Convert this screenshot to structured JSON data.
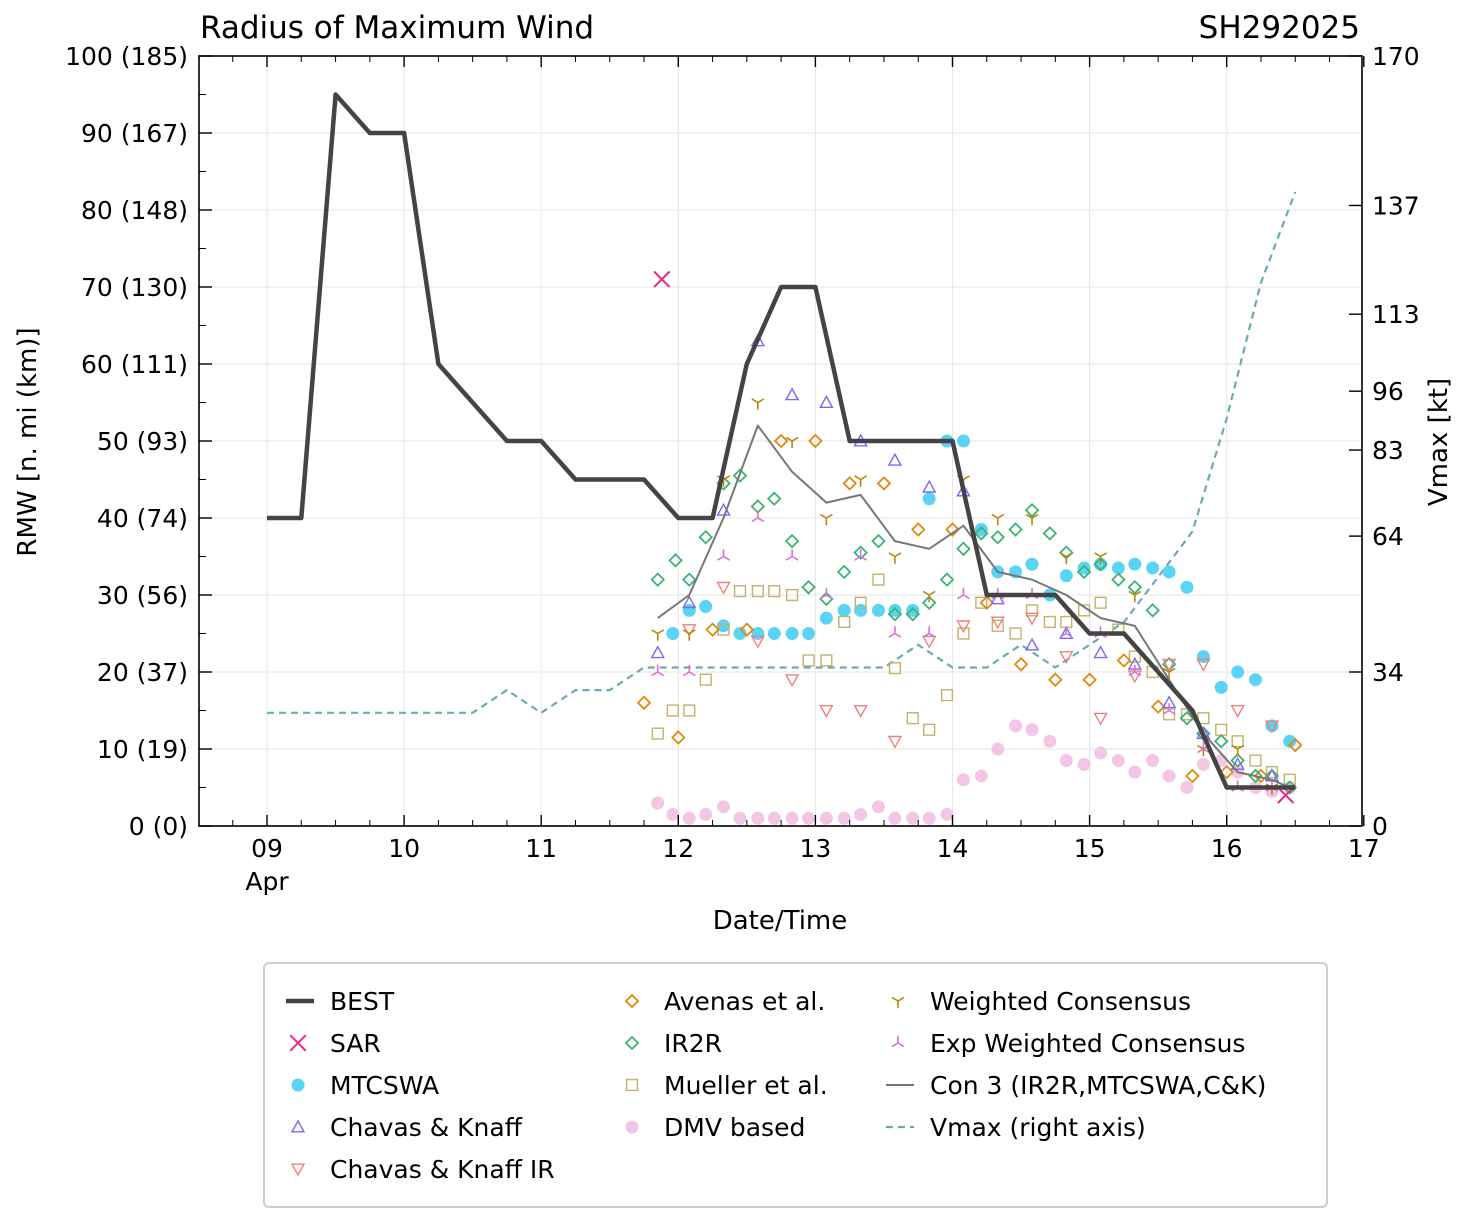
{
  "chart_data": {
    "type": "line",
    "title": "Radius of Maximum Wind",
    "storm_id": "SH292025",
    "xlabel": "Date/Time",
    "ylabel": "RMW [n. mi (km)]",
    "ylabel_right": "Vmax [kt]",
    "xlim": [
      8.5,
      17.0
    ],
    "ylim": [
      0,
      100
    ],
    "ylim_right_kt": [
      0,
      170
    ],
    "x_ticks": [
      {
        "value": 9,
        "label": "09",
        "sublabel": "Apr"
      },
      {
        "value": 10,
        "label": "10"
      },
      {
        "value": 11,
        "label": "11"
      },
      {
        "value": 12,
        "label": "12"
      },
      {
        "value": 13,
        "label": "13"
      },
      {
        "value": 14,
        "label": "14"
      },
      {
        "value": 15,
        "label": "15"
      },
      {
        "value": 16,
        "label": "16"
      },
      {
        "value": 17,
        "label": "17"
      }
    ],
    "y_ticks": [
      {
        "value": 0,
        "label": "0 (0)"
      },
      {
        "value": 10,
        "label": "10 (19)"
      },
      {
        "value": 20,
        "label": "20 (37)"
      },
      {
        "value": 30,
        "label": "30 (56)"
      },
      {
        "value": 40,
        "label": "40 (74)"
      },
      {
        "value": 50,
        "label": "50 (93)"
      },
      {
        "value": 60,
        "label": "60 (111)"
      },
      {
        "value": 70,
        "label": "70 (130)"
      },
      {
        "value": 80,
        "label": "80 (148)"
      },
      {
        "value": 90,
        "label": "90 (167)"
      },
      {
        "value": 100,
        "label": "100 (185)"
      }
    ],
    "y_ticks_right": [
      {
        "kt": 0,
        "label": "0"
      },
      {
        "kt": 34,
        "label": "34"
      },
      {
        "kt": 64,
        "label": "64"
      },
      {
        "kt": 83,
        "label": "83"
      },
      {
        "kt": 96,
        "label": "96"
      },
      {
        "kt": 113,
        "label": "113"
      },
      {
        "kt": 137,
        "label": "137"
      },
      {
        "kt": 170,
        "label": "170"
      }
    ],
    "series": [
      {
        "name": "BEST",
        "label": "BEST",
        "style": "line",
        "color": "#444444",
        "x": [
          9.0,
          9.25,
          9.5,
          9.75,
          10.0,
          10.25,
          10.5,
          10.75,
          11.0,
          11.25,
          11.5,
          11.75,
          12.0,
          12.25,
          12.5,
          12.75,
          13.0,
          13.25,
          13.5,
          13.75,
          14.0,
          14.25,
          14.5,
          14.75,
          15.0,
          15.25,
          15.5,
          15.75,
          16.0,
          16.25,
          16.5
        ],
        "y": [
          40,
          40,
          95,
          90,
          90,
          60,
          55,
          50,
          50,
          45,
          45,
          45,
          40,
          40,
          60,
          70,
          70,
          50,
          50,
          50,
          50,
          30,
          30,
          30,
          25,
          25,
          20,
          15,
          5,
          5,
          5
        ]
      },
      {
        "name": "SAR",
        "label": "SAR",
        "style": "x",
        "color": "#e7298a",
        "x": [
          11.88,
          16.43
        ],
        "y": [
          71,
          4
        ]
      },
      {
        "name": "MTCSWA",
        "label": "MTCSWA",
        "style": "dot",
        "color": "#5bd3f5",
        "x": [
          11.96,
          12.08,
          12.2,
          12.33,
          12.45,
          12.58,
          12.7,
          12.83,
          12.95,
          13.08,
          13.21,
          13.33,
          13.46,
          13.58,
          13.71,
          13.83,
          13.96,
          14.08,
          14.21,
          14.33,
          14.46,
          14.58,
          14.71,
          14.83,
          14.96,
          15.08,
          15.21,
          15.33,
          15.46,
          15.58,
          15.71,
          15.83,
          15.96,
          16.08,
          16.21,
          16.33,
          16.46
        ],
        "y": [
          25,
          28,
          28.5,
          26,
          25,
          25,
          25,
          25,
          25,
          27,
          28,
          28,
          28,
          28,
          28,
          42.5,
          50,
          50,
          38.5,
          33,
          33,
          34,
          30,
          32.5,
          33.5,
          34,
          33.5,
          34,
          33.5,
          33,
          31,
          22,
          18,
          20,
          19,
          13,
          11
        ]
      },
      {
        "name": "Chavas & Knaff",
        "label": "Chavas & Knaff",
        "style": "tri-up",
        "color": "#7b68ee",
        "x": [
          11.85,
          12.08,
          12.33,
          12.58,
          12.83,
          13.08,
          13.33,
          13.58,
          13.83,
          14.08,
          14.33,
          14.58,
          14.83,
          15.08,
          15.33,
          15.58,
          15.83,
          16.08,
          16.33
        ],
        "y": [
          22.5,
          29,
          41,
          63,
          56,
          55,
          50,
          47.5,
          44,
          43.5,
          29.5,
          23.5,
          25,
          22.5,
          21,
          16,
          12,
          8,
          6.5
        ]
      },
      {
        "name": "Chavas & Knaff IR",
        "label": "Chavas & Knaff IR",
        "style": "tri-down",
        "color": "#f08080",
        "x": [
          12.08,
          12.33,
          12.58,
          12.83,
          13.08,
          13.33,
          13.58,
          13.83,
          14.08,
          14.33,
          14.58,
          14.83,
          15.08,
          15.33,
          15.58,
          15.83,
          16.08,
          16.33
        ],
        "y": [
          25.5,
          31,
          24,
          19,
          15,
          15,
          11,
          24,
          26,
          26.5,
          27,
          22,
          14,
          19.5,
          21,
          21,
          15,
          13
        ]
      },
      {
        "name": "Avenas et al.",
        "label": "Avenas et al.",
        "style": "diamond",
        "color": "#e08a0b",
        "x": [
          11.75,
          12.0,
          12.25,
          12.5,
          12.75,
          13.0,
          13.25,
          13.5,
          13.75,
          14.0,
          14.25,
          14.5,
          14.75,
          15.0,
          15.25,
          15.5,
          15.75,
          16.0,
          16.25,
          16.5
        ],
        "y": [
          16,
          11.5,
          25.5,
          25.5,
          50,
          50,
          44.5,
          44.5,
          38.5,
          38.5,
          29,
          21,
          19,
          19,
          21.5,
          15.5,
          6.5,
          7,
          6.5,
          10.5
        ]
      },
      {
        "name": "IR2R",
        "label": "IR2R",
        "style": "diamond",
        "color": "#3cb371",
        "x": [
          11.85,
          11.98,
          12.08,
          12.2,
          12.33,
          12.45,
          12.58,
          12.7,
          12.83,
          12.95,
          13.08,
          13.21,
          13.33,
          13.46,
          13.58,
          13.71,
          13.83,
          13.96,
          14.08,
          14.21,
          14.33,
          14.46,
          14.58,
          14.71,
          14.83,
          14.96,
          15.08,
          15.21,
          15.33,
          15.46,
          15.58,
          15.71,
          15.83,
          15.96,
          16.08,
          16.21,
          16.33,
          16.46
        ],
        "y": [
          32,
          34.5,
          32,
          37.5,
          44.5,
          45.5,
          41.5,
          42.5,
          37,
          31,
          29.5,
          33,
          35.5,
          37,
          27.5,
          27.5,
          29,
          32,
          36,
          38,
          37.5,
          38.5,
          41,
          38,
          35.5,
          33,
          34,
          32,
          31,
          28,
          21,
          14,
          12,
          11,
          8.5,
          6.5,
          6.5,
          5
        ]
      },
      {
        "name": "Mueller et al.",
        "label": "Mueller et al.",
        "style": "square",
        "color": "#c2b26a",
        "x": [
          11.85,
          11.96,
          12.08,
          12.2,
          12.33,
          12.45,
          12.58,
          12.7,
          12.83,
          12.95,
          13.08,
          13.21,
          13.33,
          13.46,
          13.58,
          13.71,
          13.83,
          13.96,
          14.08,
          14.21,
          14.33,
          14.46,
          14.58,
          14.71,
          14.83,
          14.96,
          15.08,
          15.21,
          15.33,
          15.46,
          15.58,
          15.71,
          15.83,
          15.96,
          16.08,
          16.21,
          16.33,
          16.46
        ],
        "y": [
          12,
          15,
          15,
          19,
          25.5,
          30.5,
          30.5,
          30.5,
          30,
          21.5,
          21.5,
          26.5,
          29,
          32,
          20.5,
          14,
          12.5,
          17,
          25,
          29,
          26,
          25,
          28,
          26.5,
          26.5,
          28,
          29,
          25.5,
          22,
          20,
          14.5,
          14.5,
          14,
          12.5,
          11,
          8.5,
          7,
          6
        ]
      },
      {
        "name": "DMV based",
        "label": "DMV based",
        "style": "dot",
        "color": "#f2c6e4",
        "x": [
          11.85,
          11.96,
          12.08,
          12.2,
          12.33,
          12.45,
          12.58,
          12.7,
          12.83,
          12.95,
          13.08,
          13.21,
          13.33,
          13.46,
          13.58,
          13.71,
          13.83,
          13.96,
          14.08,
          14.21,
          14.33,
          14.46,
          14.58,
          14.71,
          14.83,
          14.96,
          15.08,
          15.21,
          15.33,
          15.46,
          15.58,
          15.71,
          15.83,
          15.96,
          16.08,
          16.21,
          16.33,
          16.46
        ],
        "y": [
          3,
          1.5,
          1,
          1.5,
          2.5,
          1,
          1,
          1,
          1,
          1,
          1,
          1,
          1.5,
          2.5,
          1,
          1,
          1,
          1.5,
          6,
          6.5,
          10,
          13,
          12.5,
          11,
          8.5,
          8,
          9.5,
          8.5,
          7,
          8.5,
          6.5,
          5,
          8,
          8.5,
          7,
          5,
          4.5,
          5
        ]
      },
      {
        "name": "Weighted Consensus",
        "label": "Weighted Consensus",
        "style": "tri-y",
        "color": "#b8860b",
        "x": [
          11.85,
          12.08,
          12.33,
          12.58,
          12.83,
          13.08,
          13.33,
          13.58,
          13.83,
          14.08,
          14.33,
          14.58,
          14.83,
          15.08,
          15.33,
          15.58,
          15.83,
          16.08,
          16.33
        ],
        "y": [
          25,
          25,
          45,
          55,
          50,
          40,
          45,
          35,
          30,
          45,
          40,
          40,
          35,
          35,
          30,
          20,
          10,
          10,
          5
        ]
      },
      {
        "name": "Exp Weighted Consensus",
        "label": "Exp Weighted Consensus",
        "style": "tri-lambda",
        "color": "#da70d6",
        "x": [
          11.85,
          12.08,
          12.33,
          12.58,
          12.83,
          13.08,
          13.33,
          13.58,
          13.83,
          14.08,
          14.33,
          14.58,
          14.83,
          15.08,
          15.33,
          15.58,
          15.83,
          16.08,
          16.33
        ],
        "y": [
          20,
          20,
          35,
          40,
          35,
          30,
          35,
          25,
          25,
          30,
          30,
          30,
          25,
          25,
          20,
          15,
          10,
          5,
          5
        ]
      },
      {
        "name": "Con 3 (IR2R,MTCSWA,C&K)",
        "label": "Con 3 (IR2R,MTCSWA,C&K)",
        "style": "line",
        "color": "#777777",
        "x": [
          11.85,
          12.08,
          12.33,
          12.58,
          12.83,
          13.08,
          13.33,
          13.58,
          13.83,
          14.08,
          14.33,
          14.58,
          14.83,
          15.08,
          15.33,
          15.58,
          15.83,
          16.08,
          16.33,
          16.46
        ],
        "y": [
          27,
          30,
          40,
          52,
          46,
          42,
          43,
          37,
          36,
          39,
          33,
          32,
          30,
          27,
          26,
          19,
          12,
          7,
          6,
          5
        ]
      },
      {
        "name": "Vmax (right axis)",
        "label": "Vmax (right axis)",
        "style": "dashed",
        "color": "#6aaab3",
        "axis": "right",
        "x": [
          9.0,
          9.25,
          9.5,
          9.75,
          10.0,
          10.25,
          10.5,
          10.75,
          11.0,
          11.25,
          11.5,
          11.75,
          12.0,
          12.25,
          12.5,
          12.75,
          13.0,
          13.25,
          13.5,
          13.75,
          14.0,
          14.25,
          14.5,
          14.75,
          15.0,
          15.25,
          15.5,
          15.75,
          16.0,
          16.25,
          16.5
        ],
        "y_kt": [
          25,
          25,
          25,
          25,
          25,
          25,
          25,
          30,
          25,
          30,
          30,
          35,
          35,
          35,
          35,
          35,
          35,
          35,
          35,
          40,
          35,
          35,
          40,
          35,
          40,
          45,
          55,
          65,
          90,
          120,
          140
        ]
      }
    ],
    "legend": {
      "position": "below-plot",
      "columns": [
        [
          "BEST",
          "SAR",
          "MTCSWA",
          "Chavas & Knaff",
          "Chavas & Knaff IR"
        ],
        [
          "Avenas et al.",
          "IR2R",
          "Mueller et al.",
          "DMV based"
        ],
        [
          "Weighted Consensus",
          "Exp Weighted Consensus",
          "Con 3 (IR2R,MTCSWA,C&K)",
          "Vmax (right axis)"
        ]
      ]
    },
    "grid": true
  }
}
